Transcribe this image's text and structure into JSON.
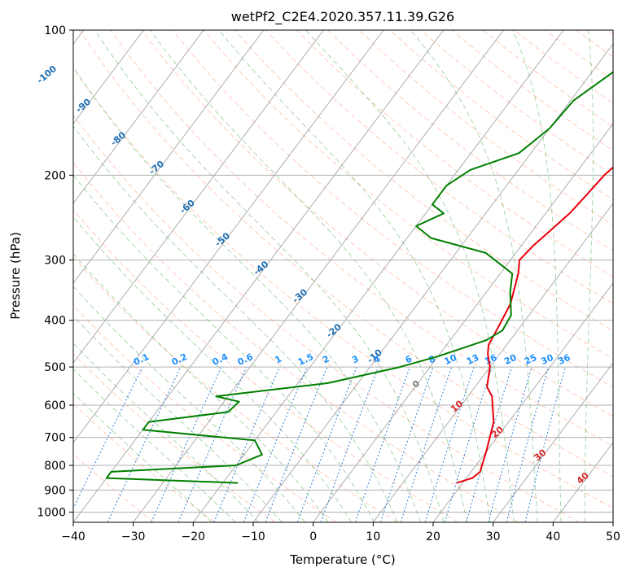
{
  "chart_data": {
    "type": "line",
    "title": "wetPf2_C2E4.2020.357.11.39.G26",
    "xlabel": "Temperature (°C)",
    "ylabel": "Pressure (hPa)",
    "xlim": [
      -40,
      50
    ],
    "ylim": [
      1050,
      100
    ],
    "y_scale": "log",
    "grid": true,
    "x_ticks": [
      "−40",
      "−30",
      "−20",
      "−10",
      "0",
      "10",
      "20",
      "30",
      "40",
      "50"
    ],
    "y_ticks": [
      "100",
      "200",
      "300",
      "400",
      "500",
      "600",
      "700",
      "800",
      "900",
      "1000"
    ],
    "colors": {
      "temperature": "#e8000b",
      "dewpoint": "#008000",
      "isotherm": "#7f7f7f",
      "dry_adiabat": "#ff7f50",
      "moist_adiabat": "#2ca02c",
      "mixing_ratio": "#1f77d4",
      "isotherm_labels": "#1f6fb4",
      "mixing_ratio_labels": "#1e90ff",
      "temperature_labels": "#d62728"
    },
    "series": [
      {
        "key": "temperature",
        "temperature_c": [
          19,
          21,
          21.5,
          21,
          20,
          17.5,
          14,
          12,
          10,
          8,
          7,
          6.5,
          5.5,
          3,
          1.5,
          2,
          3,
          4,
          4.5,
          5,
          6,
          6.5,
          7,
          8,
          9,
          10,
          12.5
        ],
        "pressure_hpa": [
          870,
          850,
          825,
          800,
          750,
          650,
          575,
          550,
          500,
          470,
          450,
          420,
          370,
          320,
          300,
          280,
          260,
          240,
          220,
          200,
          185,
          170,
          155,
          140,
          130,
          120,
          100
        ]
      },
      {
        "key": "dewpoint",
        "temperature_c": [
          -17.5,
          -40,
          -40,
          -20,
          -17,
          -20,
          -40,
          -40,
          -28,
          -27.5,
          -32,
          -15,
          -5,
          0,
          6,
          7.5,
          7,
          4,
          2,
          -5,
          -16,
          -20,
          -17,
          -20,
          -20,
          -18,
          -12,
          -10,
          -9.5,
          -2
        ],
        "pressure_hpa": [
          870,
          850,
          825,
          800,
          760,
          710,
          675,
          650,
          620,
          590,
          575,
          540,
          500,
          475,
          440,
          420,
          390,
          350,
          320,
          290,
          270,
          255,
          240,
          230,
          210,
          195,
          180,
          160,
          140,
          100
        ]
      }
    ],
    "isotherm_labels": [
      "-100",
      "-90",
      "-80",
      "-70",
      "-60",
      "-50",
      "-40",
      "-30",
      "-20",
      "-10"
    ],
    "isotherm_label_values": [
      -100,
      -90,
      -80,
      -70,
      -60,
      -50,
      -40,
      -30,
      -20,
      -10
    ],
    "isotherm_label_pressures": [
      125,
      145,
      170,
      195,
      235,
      275,
      315,
      360,
      425,
      480
    ],
    "mixing_ratio_labels": [
      "0.1",
      "0.2",
      "0.4",
      "0.6",
      "1",
      "1.5",
      "2",
      "3",
      "4",
      "6",
      "8",
      "10",
      "13",
      "16",
      "20",
      "25",
      "30",
      "36"
    ],
    "mixing_ratio_values": [
      0.1,
      0.2,
      0.4,
      0.6,
      1,
      1.5,
      2,
      3,
      4,
      6,
      8,
      10,
      13,
      16,
      20,
      25,
      30,
      36
    ],
    "zero_label": "0",
    "temperature_labels": [
      "10",
      "20",
      "30",
      "40"
    ],
    "temperature_label_values": [
      10,
      20,
      30,
      40
    ],
    "temperature_label_pressures": [
      610,
      690,
      770,
      860
    ]
  }
}
